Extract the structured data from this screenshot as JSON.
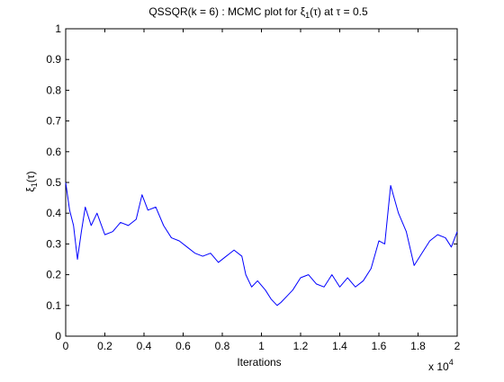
{
  "chart_data": {
    "type": "line",
    "title": "QSSQR(k = 6) : MCMC plot for ξ1(τ) at τ = 0.5",
    "title_parts": {
      "prefix": "QSSQR(k = 6) : MCMC plot for ",
      "xi": "ξ",
      "xi_sub": "1",
      "tau_arg": "(τ)",
      "suffix": " at ",
      "tau": "τ",
      "value": " = 0.5"
    },
    "xlabel": "Iterations",
    "ylabel": "ξ1(τ)",
    "ylabel_parts": {
      "xi": "ξ",
      "sub": "1",
      "arg": "(τ)"
    },
    "x_multiplier": "x 10",
    "x_multiplier_exponent": "4",
    "xlim": [
      0,
      2
    ],
    "ylim": [
      0,
      1
    ],
    "xticks": [
      "0",
      "0.2",
      "0.4",
      "0.6",
      "0.8",
      "1",
      "1.2",
      "1.4",
      "1.6",
      "1.8",
      "2"
    ],
    "yticks": [
      "0",
      "0.1",
      "0.2",
      "0.3",
      "0.4",
      "0.5",
      "0.6",
      "0.7",
      "0.8",
      "0.9",
      "1"
    ],
    "grid": false,
    "series": [
      {
        "color": "#0000ff",
        "x": [
          0,
          0.02,
          0.04,
          0.06,
          0.08,
          0.1,
          0.13,
          0.16,
          0.2,
          0.24,
          0.28,
          0.32,
          0.36,
          0.39,
          0.42,
          0.46,
          0.5,
          0.54,
          0.58,
          0.62,
          0.66,
          0.7,
          0.74,
          0.78,
          0.82,
          0.86,
          0.9,
          0.92,
          0.95,
          0.98,
          1.02,
          1.05,
          1.08,
          1.1,
          1.13,
          1.16,
          1.2,
          1.24,
          1.28,
          1.32,
          1.36,
          1.4,
          1.44,
          1.48,
          1.52,
          1.56,
          1.6,
          1.63,
          1.66,
          1.7,
          1.74,
          1.78,
          1.82,
          1.86,
          1.9,
          1.94,
          1.97,
          2.0
        ],
        "y": [
          0.5,
          0.41,
          0.36,
          0.25,
          0.34,
          0.42,
          0.36,
          0.4,
          0.33,
          0.34,
          0.37,
          0.36,
          0.38,
          0.46,
          0.41,
          0.42,
          0.36,
          0.32,
          0.31,
          0.29,
          0.27,
          0.26,
          0.27,
          0.24,
          0.26,
          0.28,
          0.26,
          0.2,
          0.16,
          0.18,
          0.15,
          0.12,
          0.1,
          0.11,
          0.13,
          0.15,
          0.19,
          0.2,
          0.17,
          0.16,
          0.2,
          0.16,
          0.19,
          0.16,
          0.18,
          0.22,
          0.31,
          0.3,
          0.49,
          0.4,
          0.34,
          0.23,
          0.27,
          0.31,
          0.33,
          0.32,
          0.29,
          0.34
        ]
      }
    ]
  }
}
